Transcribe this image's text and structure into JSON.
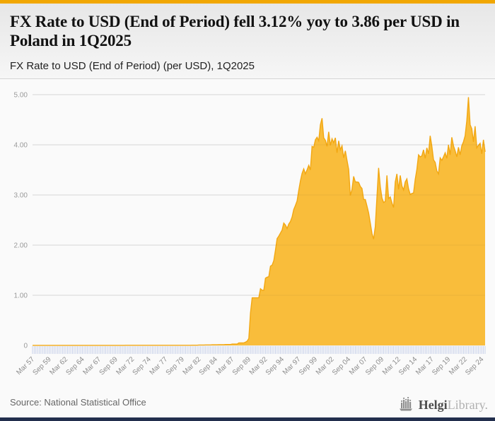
{
  "page": {
    "accent_color": "#F1A702",
    "footer_bar_color": "#222E4D",
    "background": "#FAFAFA"
  },
  "header": {
    "title": "FX Rate to USD (End of Period) fell 3.12% yoy to 3.86 per USD in Poland in 1Q2025",
    "subtitle": "FX Rate to USD (End of Period) (per USD), 1Q2025"
  },
  "footer": {
    "source": "Source: National Statistical Office",
    "logo_icon": "bar-chart-icon",
    "logo_text_primary": "Helgi",
    "logo_text_secondary": "Library."
  },
  "chart_data": {
    "type": "area",
    "title": "FX Rate to USD (End of Period) (per USD), 1Q2025",
    "series_name": "FX Rate to USD (End of Period), Poland",
    "unit": "per USD",
    "frequency": "quarterly",
    "x_start": "Mar 1957",
    "x_end": "Mar 2025",
    "last_value": 3.86,
    "yoy_change_pct": -3.12,
    "ylim": [
      0,
      5
    ],
    "y_tick_labels": [
      "0",
      "1.00",
      "2.00",
      "3.00",
      "4.00",
      "5.00"
    ],
    "x_tick_every_n_points": 10,
    "x_tick_labels": [
      "Mar 57",
      "Sep 59",
      "Mar 62",
      "Sep 64",
      "Mar 67",
      "Sep 69",
      "Mar 72",
      "Sep 74",
      "Mar 77",
      "Sep 79",
      "Mar 82",
      "Sep 84",
      "Mar 87",
      "Sep 89",
      "Mar 92",
      "Sep 94",
      "Mar 97",
      "Sep 99",
      "Mar 02",
      "Sep 04",
      "Mar 07",
      "Sep 09",
      "Mar 12",
      "Sep 14",
      "Mar 17",
      "Sep 19",
      "Mar 22",
      "Sep 24"
    ],
    "grid": true,
    "legend": false,
    "fill_color": "#F9BD3B",
    "line_color": "#F2A712",
    "tick_color": "#C3CDE8",
    "values": [
      0.0004,
      0.0004,
      0.0004,
      0.0004,
      0.0004,
      0.0004,
      0.0004,
      0.0004,
      0.0004,
      0.0004,
      0.0004,
      0.0004,
      0.0004,
      0.0004,
      0.0004,
      0.0004,
      0.0004,
      0.0004,
      0.0004,
      0.0004,
      0.0004,
      0.0004,
      0.0004,
      0.0004,
      0.0004,
      0.0004,
      0.0004,
      0.0004,
      0.0004,
      0.0004,
      0.0004,
      0.0004,
      0.0004,
      0.0004,
      0.0004,
      0.0004,
      0.0004,
      0.0004,
      0.0004,
      0.0004,
      0.0004,
      0.0004,
      0.0004,
      0.0004,
      0.0004,
      0.0004,
      0.0004,
      0.0004,
      0.0004,
      0.0004,
      0.0004,
      0.0004,
      0.0004,
      0.0004,
      0.0004,
      0.0004,
      0.002,
      0.002,
      0.002,
      0.002,
      0.002,
      0.002,
      0.002,
      0.002,
      0.002,
      0.002,
      0.002,
      0.002,
      0.002,
      0.002,
      0.002,
      0.002,
      0.002,
      0.002,
      0.002,
      0.002,
      0.003,
      0.003,
      0.003,
      0.003,
      0.003,
      0.003,
      0.003,
      0.003,
      0.003,
      0.003,
      0.003,
      0.003,
      0.003,
      0.003,
      0.003,
      0.003,
      0.003,
      0.003,
      0.003,
      0.003,
      0.005,
      0.005,
      0.005,
      0.005,
      0.008,
      0.008,
      0.008,
      0.008,
      0.01,
      0.01,
      0.01,
      0.01,
      0.013,
      0.013,
      0.013,
      0.013,
      0.015,
      0.015,
      0.015,
      0.015,
      0.019,
      0.019,
      0.019,
      0.019,
      0.027,
      0.027,
      0.027,
      0.027,
      0.05,
      0.05,
      0.05,
      0.05,
      0.065,
      0.085,
      0.14,
      0.65,
      0.95,
      0.95,
      0.95,
      0.95,
      0.95,
      1.13,
      1.1,
      1.1,
      1.34,
      1.36,
      1.37,
      1.58,
      1.6,
      1.69,
      1.9,
      2.13,
      2.18,
      2.24,
      2.3,
      2.44,
      2.4,
      2.33,
      2.42,
      2.47,
      2.56,
      2.71,
      2.79,
      2.88,
      3.09,
      3.28,
      3.43,
      3.52,
      3.42,
      3.5,
      3.59,
      3.5,
      3.97,
      3.95,
      4.1,
      4.15,
      4.08,
      4.4,
      4.53,
      4.14,
      4.09,
      3.97,
      4.26,
      3.99,
      4.12,
      4.04,
      4.14,
      3.84,
      4.08,
      3.9,
      3.98,
      3.74,
      3.88,
      3.69,
      3.51,
      2.99,
      3.11,
      3.37,
      3.26,
      3.26,
      3.25,
      3.17,
      3.13,
      2.91,
      2.91,
      2.78,
      2.64,
      2.44,
      2.23,
      2.12,
      2.37,
      2.96,
      3.54,
      3.17,
      2.94,
      2.85,
      2.87,
      3.39,
      2.93,
      2.96,
      2.84,
      2.75,
      3.26,
      3.42,
      3.11,
      3.39,
      3.18,
      3.1,
      3.26,
      3.32,
      3.12,
      3.01,
      3.03,
      3.04,
      3.31,
      3.51,
      3.8,
      3.76,
      3.78,
      3.9,
      3.73,
      3.94,
      3.82,
      4.18,
      3.97,
      3.7,
      3.65,
      3.48,
      3.42,
      3.74,
      3.69,
      3.76,
      3.84,
      3.73,
      4.0,
      3.8,
      4.15,
      3.98,
      3.88,
      3.76,
      3.95,
      3.8,
      3.98,
      4.06,
      4.18,
      4.48,
      4.95,
      4.4,
      4.32,
      4.06,
      4.37,
      3.94,
      3.99,
      4.03,
      3.82,
      4.1,
      3.86
    ]
  }
}
